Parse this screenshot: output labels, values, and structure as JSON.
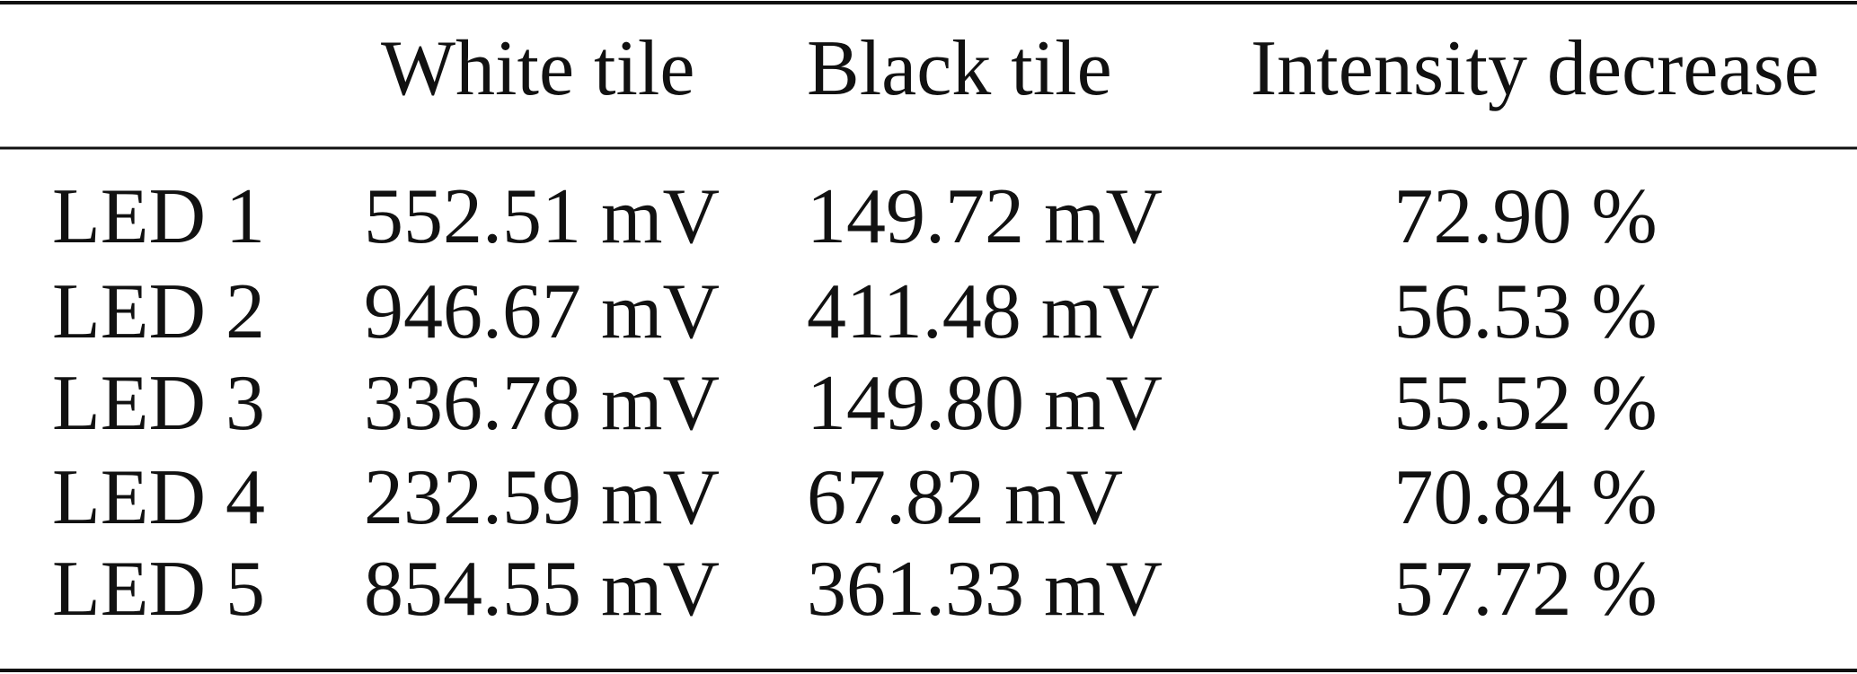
{
  "table": {
    "header": [
      "White tile",
      "Black tile",
      "Intensity decrease"
    ],
    "rows": [
      [
        "LED 1",
        "552.51 mV",
        "149.72 mV",
        "72.90 %"
      ],
      [
        "LED 2",
        "946.67 mV",
        "411.48 mV",
        "56.53 %"
      ],
      [
        "LED 3",
        "336.78 mV",
        "149.80 mV",
        "55.52 %"
      ],
      [
        "LED 4",
        "232.59 mV",
        "67.82 mV",
        "70.84 %"
      ],
      [
        "LED 5",
        "854.55 mV",
        "361.33 mV",
        "57.72 %"
      ]
    ]
  }
}
